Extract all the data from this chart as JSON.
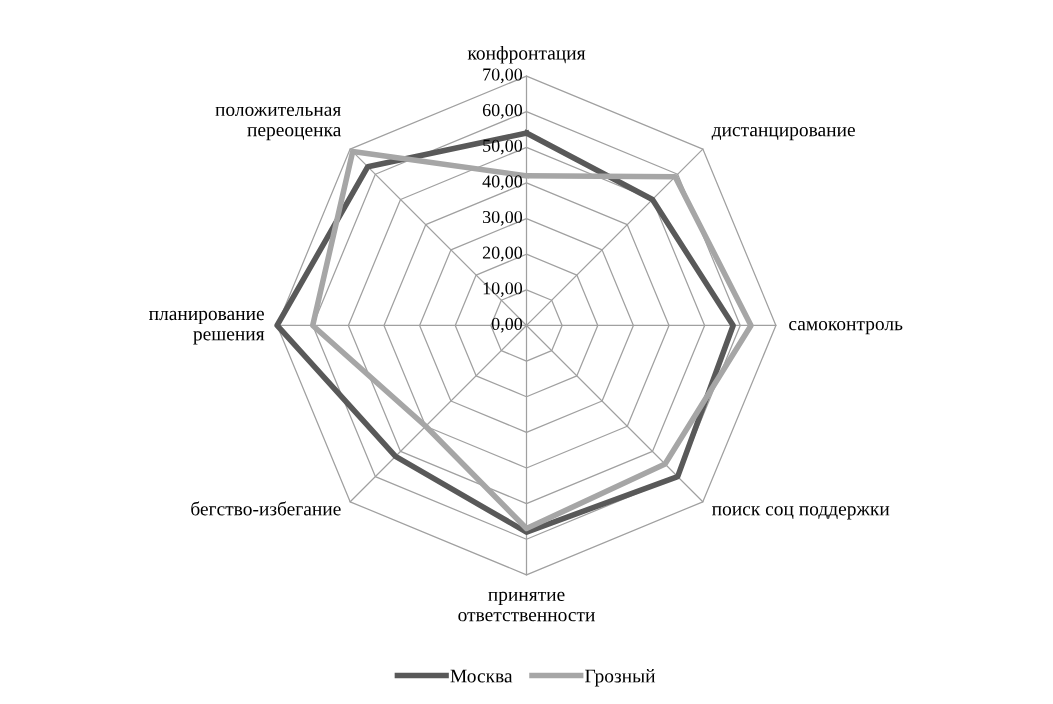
{
  "chart_data": {
    "type": "radar",
    "categories": [
      "конфронтация",
      "дистанцирование",
      "самоконтроль",
      "поиск соц поддержки",
      "принятие\nответственности",
      "бегство-избегание",
      "планирование\nрешения",
      "положительная\nпереоценка"
    ],
    "series": [
      {
        "name": "Москва",
        "color": "#595959",
        "values": [
          54,
          50,
          58,
          60,
          58,
          52,
          70,
          63
        ]
      },
      {
        "name": "Грозный",
        "color": "#a6a6a6",
        "values": [
          42,
          59,
          63,
          55,
          57,
          40,
          60,
          69
        ]
      }
    ],
    "ylim": [
      0,
      70
    ],
    "yticks": [
      {
        "value": 0,
        "label": "0,00"
      },
      {
        "value": 10,
        "label": "10,00"
      },
      {
        "value": 20,
        "label": "20,00"
      },
      {
        "value": 30,
        "label": "30,00"
      },
      {
        "value": 40,
        "label": "40,00"
      },
      {
        "value": 50,
        "label": "50,00"
      },
      {
        "value": 60,
        "label": "60,00"
      },
      {
        "value": 70,
        "label": "70,00"
      }
    ],
    "grid": true,
    "legend": "bottom"
  }
}
